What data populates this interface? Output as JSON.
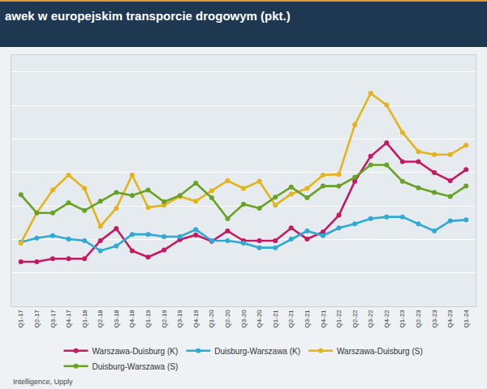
{
  "chart_data": {
    "type": "line",
    "title": "awek w europejskim transporcie drogowym (pkt.)",
    "annotations": [
      "Intelligence, Upply"
    ],
    "categories": [
      "Q1-17",
      "Q2-17",
      "Q3-17",
      "Q4-17",
      "Q1-18",
      "Q2-18",
      "Q3-18",
      "Q4-18",
      "Q1-19",
      "Q2-19",
      "Q3-19",
      "Q4-19",
      "Q1-20",
      "Q2-20",
      "Q3-20",
      "Q4-20",
      "Q1-21",
      "Q2-21",
      "Q3-21",
      "Q4-21",
      "Q1-22",
      "Q2-22",
      "Q3-22",
      "Q4-22",
      "Q1-23",
      "Q2-23",
      "Q3-23",
      "Q4-23",
      "Q1-24"
    ],
    "series": [
      {
        "name": "Warszawa-Duisburg (K)",
        "color": "#c41a63",
        "values": [
          83.3,
          83.3,
          84.2,
          84.2,
          84.2,
          89.6,
          93.2,
          86.6,
          84.7,
          86.8,
          89.9,
          91.3,
          89.4,
          92.5,
          89.6,
          89.6,
          89.6,
          93.4,
          90.1,
          92.2,
          97.2,
          107.3,
          114.8,
          118.8,
          113.2,
          113.2,
          109.9,
          107.5,
          110.8
        ]
      },
      {
        "name": "Duisburg-Warszawa (K)",
        "color": "#2eaad3",
        "values": [
          89.2,
          90.4,
          91.1,
          90.1,
          89.6,
          86.6,
          88.0,
          91.5,
          91.5,
          90.8,
          90.8,
          92.9,
          89.6,
          89.6,
          88.9,
          87.5,
          87.5,
          90.1,
          92.5,
          91.1,
          93.4,
          94.6,
          96.2,
          96.7,
          96.7,
          94.6,
          92.5,
          95.5,
          95.8
        ]
      },
      {
        "name": "Warszawa-Duisburg (S)",
        "color": "#e3b41b",
        "values": [
          88.9,
          97.9,
          104.7,
          109.2,
          105.2,
          93.9,
          99.3,
          109.2,
          99.5,
          100.2,
          102.8,
          101.4,
          104.5,
          107.5,
          105.2,
          107.3,
          100.2,
          103.5,
          105.2,
          109.2,
          109.4,
          124.2,
          133.6,
          130.1,
          121.9,
          116.2,
          115.3,
          115.3,
          118.1
        ]
      },
      {
        "name": "Duisburg-Warszawa (S)",
        "color": "#68a225",
        "values": [
          103.3,
          97.9,
          97.9,
          100.9,
          98.6,
          101.4,
          104.0,
          103.1,
          104.7,
          101.2,
          103.1,
          106.8,
          102.4,
          96.2,
          100.5,
          99.3,
          102.6,
          105.6,
          102.4,
          105.9,
          105.9,
          108.5,
          112.2,
          112.2,
          107.3,
          105.4,
          104.0,
          102.8,
          105.9
        ]
      }
    ],
    "ylim": [
      70,
      145
    ],
    "yticks": [
      80,
      90,
      100,
      110,
      120,
      130,
      140
    ],
    "grid": true,
    "tick_labels": "x",
    "legend": "bottom",
    "marker": "circle",
    "line_style": "solid"
  }
}
